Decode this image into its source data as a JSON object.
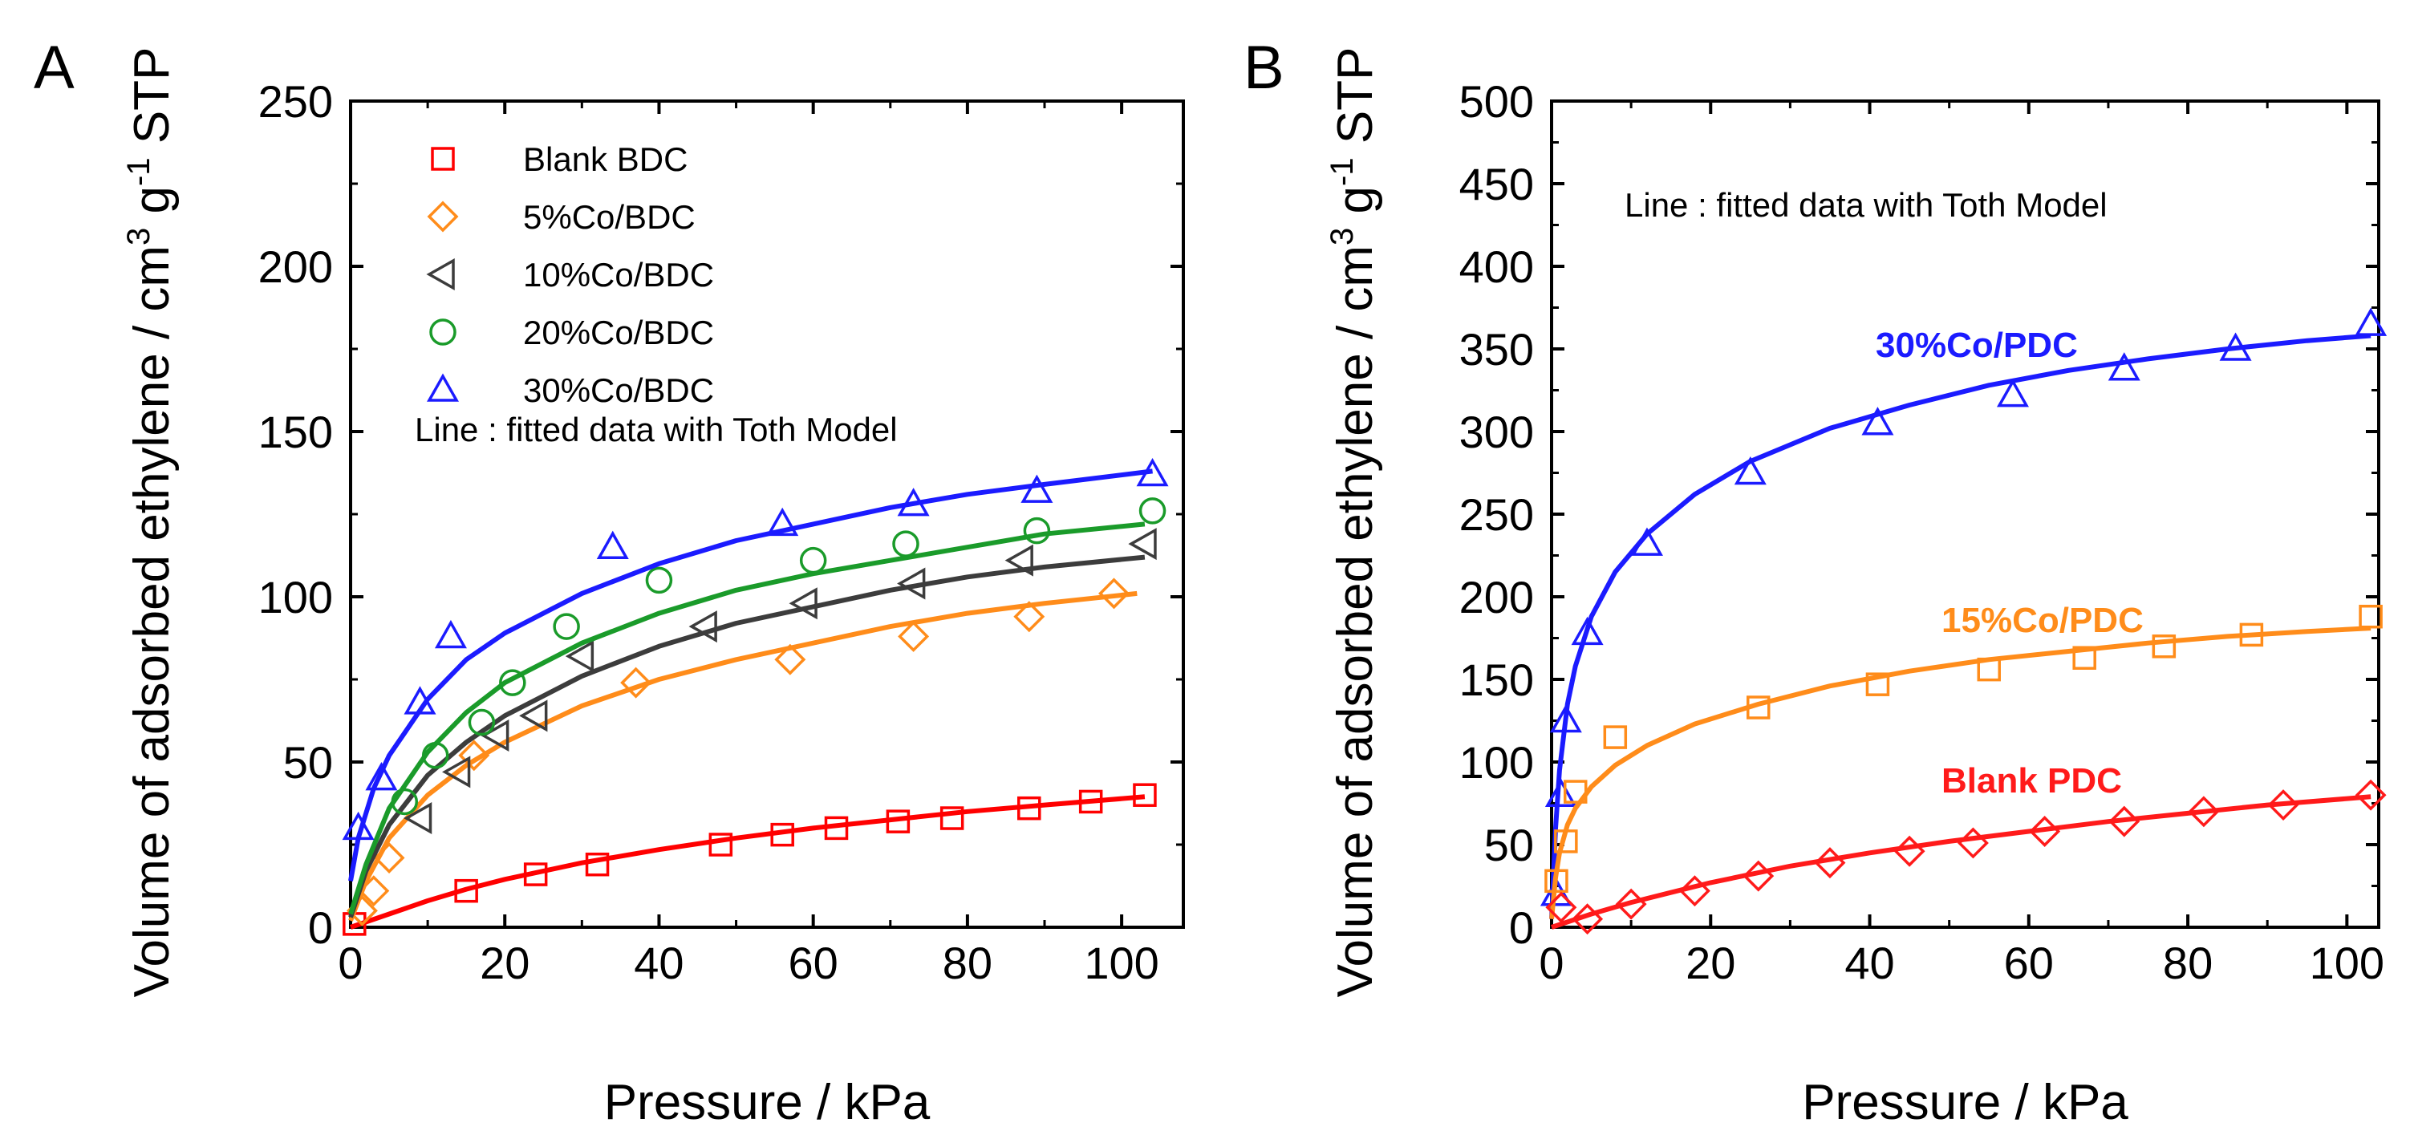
{
  "chart_data": [
    {
      "id": "A",
      "type": "scatter",
      "panel_label": "A",
      "xlabel": "Pressure / kPa",
      "ylabel_main": "Volume of adsorbed ethylene / cm",
      "ylabel_sup1": "3",
      "ylabel_mid": " g",
      "ylabel_sup2": "-1",
      "ylabel_end": " STP",
      "xlim": [
        0,
        108
      ],
      "ylim": [
        0,
        250
      ],
      "xticks": [
        0,
        20,
        40,
        60,
        80,
        100
      ],
      "yticks": [
        0,
        50,
        100,
        150,
        200,
        250
      ],
      "grid": false,
      "legend_position": "top-left",
      "annotation": "Line : fitted data with Toth Model",
      "series": [
        {
          "name": "Blank BDC",
          "color": "#ff0000",
          "marker": "square",
          "x": [
            0.5,
            15,
            24,
            32,
            48,
            56,
            63,
            71,
            78,
            88,
            96,
            103
          ],
          "y": [
            1,
            11,
            16,
            19,
            25,
            28,
            30,
            32,
            33,
            36,
            38,
            40
          ],
          "fit_x": [
            0,
            5,
            10,
            15,
            20,
            30,
            40,
            50,
            60,
            70,
            80,
            90,
            103
          ],
          "fit_y": [
            0,
            4,
            8,
            11.5,
            14.5,
            19.5,
            23.5,
            27,
            30,
            32.5,
            35,
            37,
            39.5
          ]
        },
        {
          "name": "5%Co/BDC",
          "color": "#ff8c1a",
          "marker": "diamond",
          "x": [
            1.5,
            3,
            5,
            16,
            37,
            57,
            73,
            88,
            99
          ],
          "y": [
            5,
            11,
            21,
            52,
            74,
            81,
            88,
            94,
            101
          ],
          "fit_x": [
            0,
            2,
            5,
            10,
            15,
            20,
            30,
            40,
            50,
            60,
            70,
            80,
            90,
            102
          ],
          "fit_y": [
            2,
            14,
            27,
            40,
            49,
            56,
            67,
            75,
            81,
            86,
            91,
            95,
            98,
            101
          ]
        },
        {
          "name": "10%Co/BDC",
          "color": "#3c3c3c",
          "marker": "triangle-left",
          "x": [
            9,
            14,
            19,
            24,
            30,
            46,
            59,
            73,
            87,
            103
          ],
          "y": [
            33,
            47,
            58,
            64,
            82,
            91,
            98,
            104,
            111,
            116
          ],
          "fit_x": [
            0,
            2,
            5,
            10,
            15,
            20,
            30,
            40,
            50,
            60,
            70,
            80,
            90,
            103
          ],
          "fit_y": [
            3,
            17,
            31,
            46,
            56,
            64,
            76,
            85,
            92,
            97,
            102,
            106,
            109,
            112
          ]
        },
        {
          "name": "20%Co/BDC",
          "color": "#1a9b2a",
          "marker": "circle",
          "x": [
            7,
            11,
            17,
            21,
            28,
            40,
            60,
            72,
            89,
            104
          ],
          "y": [
            38,
            52,
            62,
            74,
            91,
            105,
            111,
            116,
            120,
            126
          ],
          "fit_x": [
            0,
            2,
            5,
            10,
            15,
            20,
            30,
            40,
            50,
            60,
            70,
            80,
            90,
            103
          ],
          "fit_y": [
            4,
            19,
            36,
            53,
            65,
            74,
            86,
            95,
            102,
            107,
            111,
            115,
            119,
            122
          ]
        },
        {
          "name": "30%Co/BDC",
          "color": "#1b1bff",
          "marker": "triangle-up",
          "x": [
            1,
            4,
            9,
            13,
            34,
            56,
            73,
            89,
            104
          ],
          "y": [
            30,
            45,
            68,
            88,
            115,
            122,
            128,
            132,
            137
          ],
          "fit_x": [
            0,
            1,
            3,
            5,
            10,
            15,
            20,
            30,
            40,
            50,
            60,
            70,
            80,
            90,
            104
          ],
          "fit_y": [
            14,
            27,
            42,
            52,
            69,
            81,
            89,
            101,
            110,
            117,
            122,
            127,
            131,
            134,
            138
          ]
        }
      ]
    },
    {
      "id": "B",
      "type": "scatter",
      "panel_label": "B",
      "xlabel": "Pressure / kPa",
      "ylabel_main": "Volume of adsorbed ethylene / cm",
      "ylabel_sup1": "3",
      "ylabel_mid": " g",
      "ylabel_sup2": "-1",
      "ylabel_end": " STP",
      "xlim": [
        0,
        104
      ],
      "ylim": [
        0,
        500
      ],
      "xticks": [
        0,
        20,
        40,
        60,
        80,
        100
      ],
      "yticks": [
        0,
        50,
        100,
        150,
        200,
        250,
        300,
        350,
        400,
        450,
        500
      ],
      "grid": false,
      "annotation": "Line : fitted data with Toth Model",
      "series": [
        {
          "name": "30%Co/PDC",
          "color": "#1b1bff",
          "marker": "triangle-up",
          "x": [
            0.6,
            1.2,
            1.8,
            4.5,
            12,
            25,
            41,
            58,
            72,
            86,
            103
          ],
          "y": [
            20,
            80,
            125,
            178,
            232,
            275,
            305,
            322,
            338,
            350,
            365
          ],
          "fit_x": [
            0,
            0.5,
            1,
            2,
            3,
            5,
            8,
            12,
            18,
            25,
            35,
            45,
            55,
            65,
            75,
            85,
            95,
            103
          ],
          "fit_y": [
            5,
            60,
            95,
            135,
            158,
            188,
            215,
            238,
            262,
            282,
            302,
            316,
            328,
            337,
            344,
            350,
            355,
            358
          ]
        },
        {
          "name": "15%Co/PDC",
          "color": "#ff8c1a",
          "marker": "square",
          "x": [
            0.6,
            1.8,
            3,
            8,
            26,
            41,
            55,
            67,
            77,
            88,
            103
          ],
          "y": [
            28,
            52,
            82,
            115,
            133,
            147,
            156,
            163,
            170,
            177,
            188
          ],
          "fit_x": [
            0,
            0.5,
            1,
            2,
            3,
            5,
            8,
            12,
            18,
            26,
            35,
            45,
            55,
            65,
            75,
            85,
            95,
            103
          ],
          "fit_y": [
            5,
            30,
            45,
            62,
            72,
            85,
            98,
            110,
            123,
            135,
            146,
            155,
            162,
            167,
            172,
            176,
            179,
            181
          ]
        },
        {
          "name": "Blank PDC",
          "color": "#ff1a1a",
          "marker": "diamond",
          "x": [
            1.2,
            4.5,
            10,
            18,
            26,
            35,
            45,
            53,
            62,
            72,
            82,
            92,
            103
          ],
          "y": [
            12,
            5,
            14,
            22,
            31,
            39,
            46,
            51,
            58,
            64,
            70,
            74,
            80
          ],
          "fit_x": [
            0,
            5,
            10,
            15,
            20,
            30,
            40,
            50,
            60,
            70,
            80,
            90,
            103
          ],
          "fit_y": [
            0,
            8,
            15,
            21,
            27,
            37,
            45,
            52,
            58,
            64,
            69,
            74,
            79
          ]
        }
      ]
    }
  ]
}
